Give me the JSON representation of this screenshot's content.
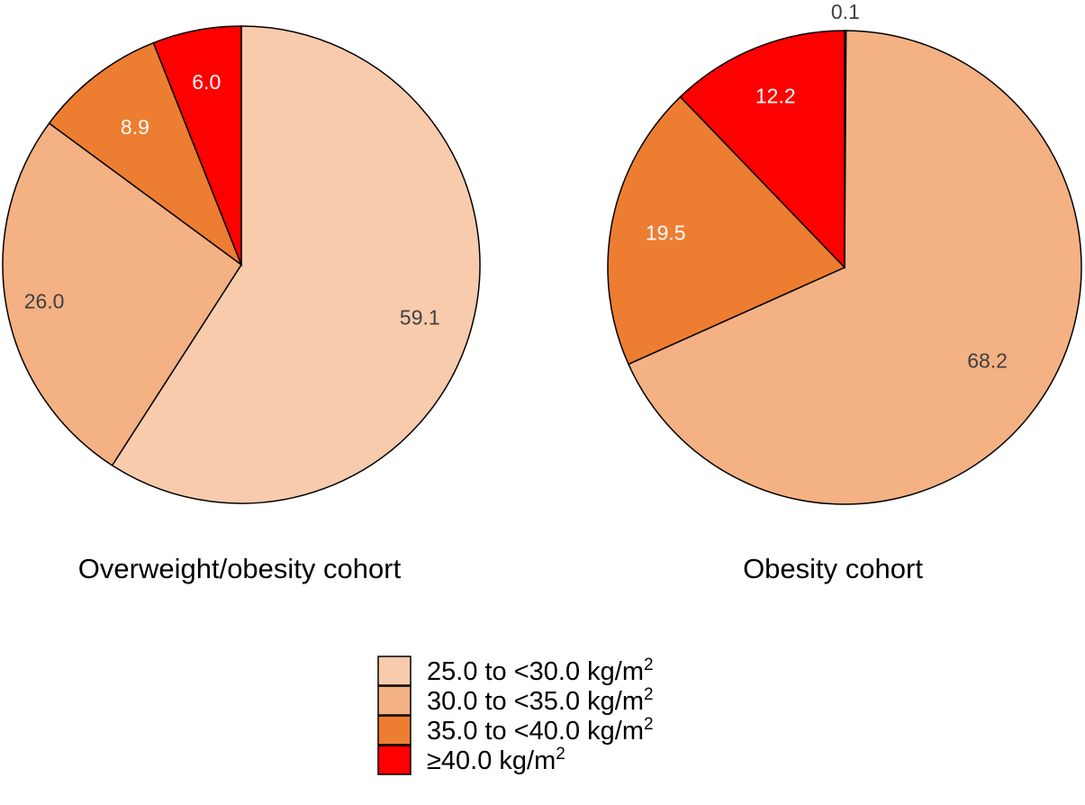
{
  "chart_data": [
    {
      "type": "pie",
      "title": "Overweight/obesity cohort",
      "slices": [
        {
          "category": "25.0 to <30.0 kg/m2",
          "label": "59.1",
          "value": 59.1,
          "color": "#F8CBAD",
          "label_color": "#404040"
        },
        {
          "category": "30.0 to <35.0 kg/m2",
          "label": "26.0",
          "value": 26.0,
          "color": "#F4B183",
          "label_color": "#404040"
        },
        {
          "category": "35.0 to <40.0 kg/m2",
          "label": "8.9",
          "value": 8.9,
          "color": "#ED7D31",
          "label_color": "#FFFFFF"
        },
        {
          "category": "≥40.0 kg/m2",
          "label": "6.0",
          "value": 6.0,
          "color": "#FF0000",
          "label_color": "#FFFFFF"
        }
      ]
    },
    {
      "type": "pie",
      "title": "Obesity cohort",
      "slices": [
        {
          "category": "25.0 to <30.0 kg/m2",
          "label": "0.1",
          "value": 0.1,
          "color": "#F8CBAD",
          "label_color": "#404040"
        },
        {
          "category": "30.0 to <35.0 kg/m2",
          "label": "68.2",
          "value": 68.2,
          "color": "#F4B183",
          "label_color": "#404040"
        },
        {
          "category": "35.0 to <40.0 kg/m2",
          "label": "19.5",
          "value": 19.5,
          "color": "#ED7D31",
          "label_color": "#FFFFFF"
        },
        {
          "category": "≥40.0 kg/m2",
          "label": "12.2",
          "value": 12.2,
          "color": "#FF0000",
          "label_color": "#FFFFFF"
        }
      ]
    }
  ],
  "legend": {
    "placement": "bottom-center",
    "items": [
      {
        "text": "25.0 to <30.0 kg/m",
        "sup": "2",
        "color": "#F8CBAD"
      },
      {
        "text": "30.0 to <35.0 kg/m",
        "sup": "2",
        "color": "#F4B183"
      },
      {
        "text": "35.0 to <40.0 kg/m",
        "sup": "2",
        "color": "#ED7D31"
      },
      {
        "text": "≥40.0 kg/m",
        "sup": "2",
        "color": "#FF0000"
      }
    ]
  }
}
